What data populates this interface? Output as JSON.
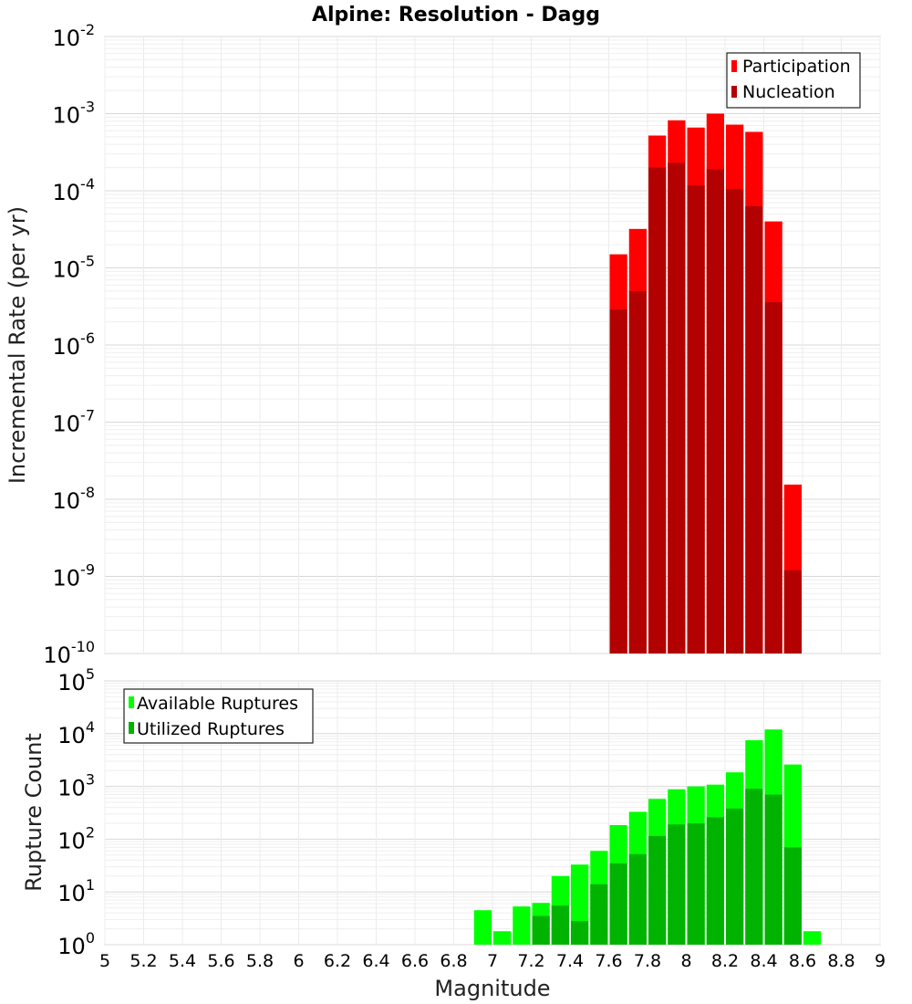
{
  "chart_data": [
    {
      "type": "bar",
      "title": "Alpine: Resolution - Dagg",
      "ylabel": "Incremental Rate (per yr)",
      "xlabel": "",
      "yscale": "log",
      "ylim": [
        1e-10,
        0.01
      ],
      "xlim": [
        5.0,
        9.0
      ],
      "bin_width": 0.1,
      "y_tick_exponents": [
        "-10",
        "-9",
        "-8",
        "-7",
        "-6",
        "-5",
        "-4",
        "-3",
        "-2"
      ],
      "legend_position": "top-right",
      "series": [
        {
          "name": "Participation",
          "color": "#ff0000",
          "x": [
            7.65,
            7.75,
            7.85,
            7.95,
            8.05,
            8.15,
            8.25,
            8.35,
            8.45,
            8.55
          ],
          "values": [
            1.5e-05,
            3.2e-05,
            0.00052,
            0.00082,
            0.00066,
            0.001,
            0.00072,
            0.00058,
            4e-05,
            1.55e-08
          ]
        },
        {
          "name": "Nucleation",
          "color": "#b30000",
          "x": [
            7.65,
            7.75,
            7.85,
            7.95,
            8.05,
            8.15,
            8.25,
            8.35,
            8.45,
            8.55
          ],
          "values": [
            2.9e-06,
            5e-06,
            0.0002,
            0.00023,
            0.000118,
            0.00019,
            0.000105,
            6.3e-05,
            3.6e-06,
            1.2e-09
          ]
        }
      ]
    },
    {
      "type": "bar",
      "title": "",
      "ylabel": "Rupture Count",
      "xlabel": "Magnitude",
      "yscale": "log",
      "ylim": [
        1,
        100000
      ],
      "xlim": [
        5.0,
        9.0
      ],
      "bin_width": 0.1,
      "x_ticks": [
        "5",
        "5.2",
        "5.4",
        "5.6",
        "5.8",
        "6",
        "6.2",
        "6.4",
        "6.6",
        "6.8",
        "7",
        "7.2",
        "7.4",
        "7.6",
        "7.8",
        "8",
        "8.2",
        "8.4",
        "8.6",
        "8.8",
        "9"
      ],
      "y_tick_exponents": [
        "0",
        "1",
        "2",
        "3",
        "4",
        "5"
      ],
      "legend_position": "top-left",
      "series": [
        {
          "name": "Available Ruptures",
          "color": "#00ff00",
          "x": [
            6.95,
            7.05,
            7.15,
            7.25,
            7.35,
            7.45,
            7.55,
            7.65,
            7.75,
            7.85,
            7.95,
            8.05,
            8.15,
            8.25,
            8.35,
            8.45,
            8.55,
            8.65
          ],
          "values": [
            4.5,
            1.8,
            5.3,
            6.2,
            20,
            33,
            60,
            185,
            330,
            580,
            880,
            1000,
            1080,
            1850,
            7500,
            12000,
            2600,
            1.8
          ]
        },
        {
          "name": "Utilized Ruptures",
          "color": "#00b300",
          "x": [
            6.95,
            7.05,
            7.15,
            7.25,
            7.35,
            7.45,
            7.55,
            7.65,
            7.75,
            7.85,
            7.95,
            8.05,
            8.15,
            8.25,
            8.35,
            8.45,
            8.55,
            8.65
          ],
          "values": [
            0,
            1,
            1,
            3.5,
            5.5,
            2.8,
            14,
            35,
            52,
            115,
            190,
            200,
            260,
            380,
            900,
            700,
            70,
            0
          ]
        }
      ]
    }
  ]
}
